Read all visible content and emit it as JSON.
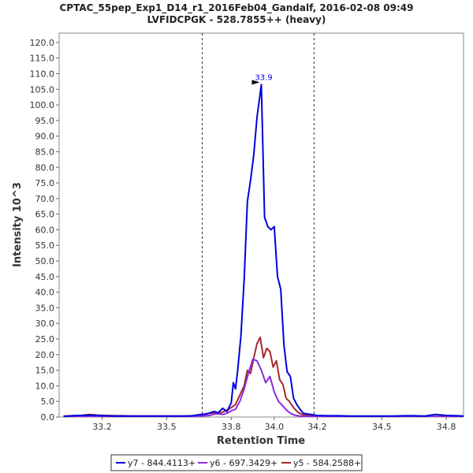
{
  "chart_data": {
    "type": "line",
    "title": "CPTAC_55pep_Exp1_D14_r1_2016Feb04_Gandalf, 2016-02-08 09:49",
    "subtitle": "LVFIDCPGK - 528.7855++ (heavy)",
    "xlabel": "Retention Time",
    "ylabel": "Intensity 10^3",
    "xlim": [
      33.0,
      34.88
    ],
    "ylim": [
      0,
      123
    ],
    "xticks": [
      33.2,
      33.5,
      33.8,
      34.0,
      34.2,
      34.5,
      34.8
    ],
    "xtick_labels": [
      "33.2",
      "33.5",
      "33.8",
      "34.0",
      "34.2",
      "34.5",
      "34.8"
    ],
    "yticks": [
      0,
      5,
      10,
      15,
      20,
      25,
      30,
      35,
      40,
      45,
      50,
      55,
      60,
      65,
      70,
      75,
      80,
      85,
      90,
      95,
      100,
      105,
      110,
      115,
      120
    ],
    "ytick_labels": [
      "0.0",
      "5.0",
      "10.0",
      "15.0",
      "20.0",
      "25.0",
      "30.0",
      "35.0",
      "40.0",
      "45.0",
      "50.0",
      "55.0",
      "60.0",
      "65.0",
      "70.0",
      "75.0",
      "80.0",
      "85.0",
      "90.0",
      "95.0",
      "100.0",
      "105.0",
      "110.0",
      "115.0",
      "120.0"
    ],
    "grid": false,
    "legend_placement": "bottom",
    "vlines": [
      33.665,
      34.185
    ],
    "peak_annotation": {
      "x": 33.94,
      "y": 106.5,
      "text": "33.9"
    },
    "series": [
      {
        "name": "y7 - 844.4113+",
        "color": "#0000dd",
        "x": [
          33.02,
          33.06,
          33.1,
          33.14,
          33.18,
          33.22,
          33.26,
          33.3,
          33.34,
          33.38,
          33.42,
          33.46,
          33.5,
          33.54,
          33.58,
          33.62,
          33.655,
          33.68,
          33.7,
          33.72,
          33.74,
          33.76,
          33.78,
          33.8,
          33.81,
          33.82,
          33.83,
          33.845,
          33.86,
          33.875,
          33.89,
          33.905,
          33.92,
          33.94,
          33.955,
          33.97,
          33.985,
          34.0,
          34.015,
          34.03,
          34.045,
          34.06,
          34.075,
          34.09,
          34.105,
          34.12,
          34.135,
          34.15,
          34.17,
          34.2,
          34.25,
          34.3,
          34.35,
          34.4,
          34.45,
          34.5,
          34.55,
          34.6,
          34.65,
          34.7,
          34.75,
          34.8,
          34.85,
          34.88
        ],
        "y": [
          0.2,
          0.4,
          0.5,
          0.6,
          0.5,
          0.4,
          0.3,
          0.3,
          0.3,
          0.3,
          0.3,
          0.3,
          0.3,
          0.3,
          0.3,
          0.4,
          0.8,
          0.9,
          1.3,
          1.8,
          1.4,
          2.8,
          1.8,
          4.5,
          11,
          9,
          15,
          26,
          44,
          69,
          76,
          84,
          96,
          106.5,
          64,
          61,
          60,
          61,
          45,
          41,
          23,
          14.5,
          13,
          6,
          4,
          2.5,
          1.2,
          1.0,
          0.8,
          0.5,
          0.4,
          0.4,
          0.3,
          0.3,
          0.3,
          0.3,
          0.3,
          0.4,
          0.4,
          0.3,
          0.8,
          0.5,
          0.4,
          0.3
        ]
      },
      {
        "name": "y6 - 697.3429+",
        "color": "#8a2be2",
        "x": [
          33.02,
          33.06,
          33.1,
          33.14,
          33.18,
          33.22,
          33.26,
          33.3,
          33.34,
          33.38,
          33.42,
          33.46,
          33.5,
          33.54,
          33.58,
          33.62,
          33.655,
          33.68,
          33.7,
          33.72,
          33.74,
          33.76,
          33.78,
          33.8,
          33.82,
          33.84,
          33.86,
          33.88,
          33.9,
          33.92,
          33.94,
          33.96,
          33.98,
          34.0,
          34.02,
          34.04,
          34.06,
          34.08,
          34.1,
          34.12,
          34.15,
          34.2,
          34.3,
          34.4,
          34.5,
          34.6,
          34.7,
          34.8,
          34.88
        ],
        "y": [
          0.1,
          0.2,
          0.2,
          0.3,
          0.2,
          0.2,
          0.1,
          0.1,
          0.1,
          0.1,
          0.1,
          0.1,
          0.1,
          0.1,
          0.1,
          0.2,
          0.3,
          0.4,
          0.5,
          0.9,
          1.0,
          0.8,
          1.2,
          2.0,
          2.5,
          5,
          9,
          14,
          18.5,
          18,
          15,
          11,
          13,
          8,
          5,
          3.5,
          2,
          1,
          0.5,
          0.3,
          0.2,
          0.1,
          0.1,
          0.1,
          0.1,
          0.1,
          0.1,
          0.1,
          0.1
        ]
      },
      {
        "name": "y5 - 584.2588+",
        "color": "#a52a2a",
        "x": [
          33.02,
          33.06,
          33.1,
          33.14,
          33.18,
          33.22,
          33.26,
          33.3,
          33.34,
          33.38,
          33.42,
          33.46,
          33.5,
          33.54,
          33.58,
          33.62,
          33.655,
          33.68,
          33.7,
          33.72,
          33.74,
          33.76,
          33.78,
          33.8,
          33.82,
          33.84,
          33.86,
          33.875,
          33.89,
          33.905,
          33.92,
          33.935,
          33.95,
          33.965,
          33.98,
          33.995,
          34.01,
          34.025,
          34.04,
          34.055,
          34.07,
          34.09,
          34.11,
          34.13,
          34.16,
          34.2,
          34.3,
          34.4,
          34.5,
          34.6,
          34.7,
          34.8,
          34.88
        ],
        "y": [
          0.3,
          0.4,
          0.5,
          0.8,
          0.6,
          0.5,
          0.4,
          0.4,
          0.3,
          0.3,
          0.3,
          0.3,
          0.3,
          0.3,
          0.3,
          0.3,
          0.5,
          1.0,
          1.2,
          1.4,
          1.0,
          1.6,
          2.2,
          3.0,
          4,
          7,
          10,
          15,
          14,
          19,
          23.5,
          25.5,
          19,
          22,
          21,
          16,
          18,
          12,
          10.5,
          6,
          5,
          3,
          1.5,
          0.8,
          0.4,
          0.3,
          0.3,
          0.2,
          0.2,
          0.2,
          0.2,
          0.2,
          0.2
        ]
      }
    ]
  }
}
